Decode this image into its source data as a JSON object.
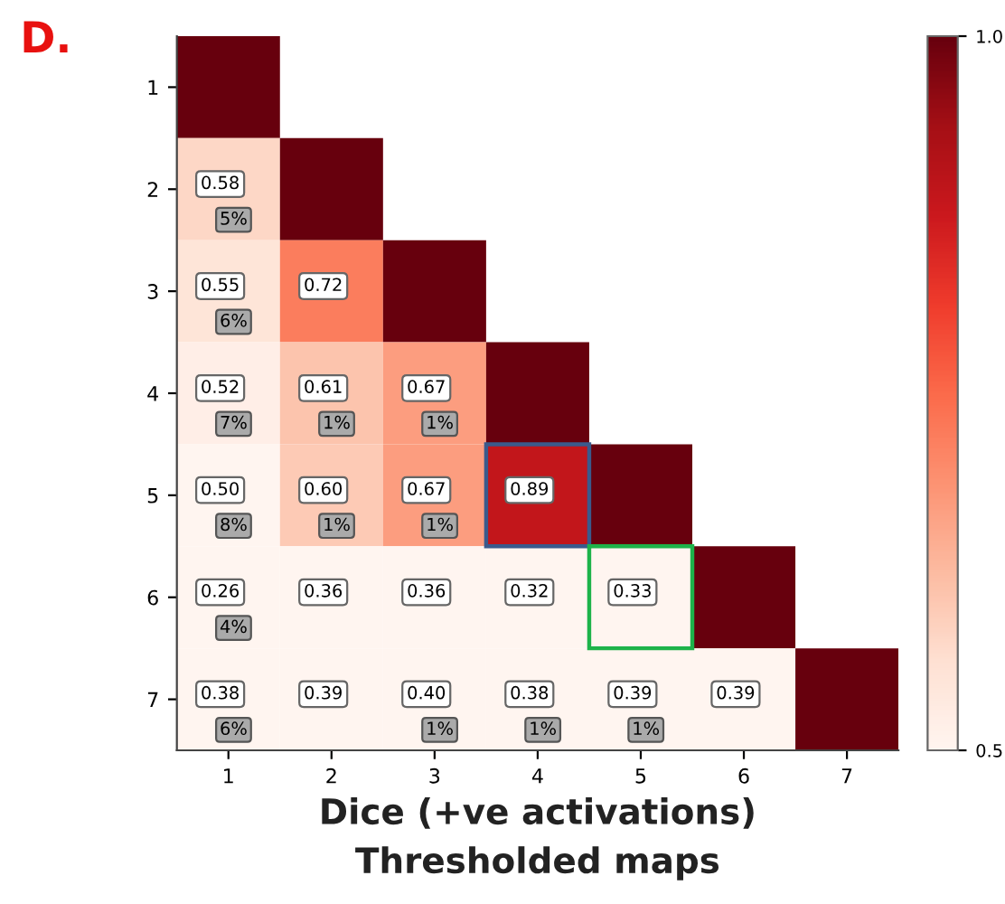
{
  "chart_data": {
    "type": "heatmap",
    "title": "D.",
    "xlabel": "Dice (+ve activations)",
    "annotations": [
      "Thresholded maps"
    ],
    "categories": [
      "1",
      "2",
      "3",
      "4",
      "5",
      "6",
      "7"
    ],
    "y_categories": [
      "1",
      "2",
      "3",
      "4",
      "5",
      "6",
      "7"
    ],
    "cells": [
      [
        1.0,
        null,
        null,
        null,
        null,
        null,
        null
      ],
      [
        0.58,
        1.0,
        null,
        null,
        null,
        null,
        null
      ],
      [
        0.55,
        0.72,
        1.0,
        null,
        null,
        null,
        null
      ],
      [
        0.52,
        0.61,
        0.67,
        1.0,
        null,
        null,
        null
      ],
      [
        0.5,
        0.6,
        0.67,
        0.89,
        1.0,
        null,
        null
      ],
      [
        0.26,
        0.36,
        0.36,
        0.32,
        0.33,
        1.0,
        null
      ],
      [
        0.38,
        0.39,
        0.4,
        0.38,
        0.39,
        0.39,
        1.0
      ]
    ],
    "cell_labels": [
      [
        null,
        null,
        null,
        null,
        null,
        null,
        null
      ],
      [
        "0.58\n5%",
        null,
        null,
        null,
        null,
        null,
        null
      ],
      [
        "0.55\n6%",
        "0.72",
        null,
        null,
        null,
        null,
        null
      ],
      [
        "0.52\n7%",
        "0.61\n1%",
        "0.67\n1%",
        null,
        null,
        null,
        null
      ],
      [
        "0.50\n8%",
        "0.60\n1%",
        "0.67\n1%",
        "0.89",
        null,
        null,
        null
      ],
      [
        "0.26\n4%",
        "0.36",
        "0.36",
        "0.32",
        "0.33",
        null,
        null
      ],
      [
        "0.38\n6%",
        "0.39",
        "0.40\n1%",
        "0.38\n1%",
        "0.39\n1%",
        "0.39",
        null
      ]
    ],
    "clim": [
      0.5,
      1.0
    ],
    "cticks": [
      0.5,
      {
        "value": 1.0,
        "label": "1.0"
      }
    ]
  }
}
